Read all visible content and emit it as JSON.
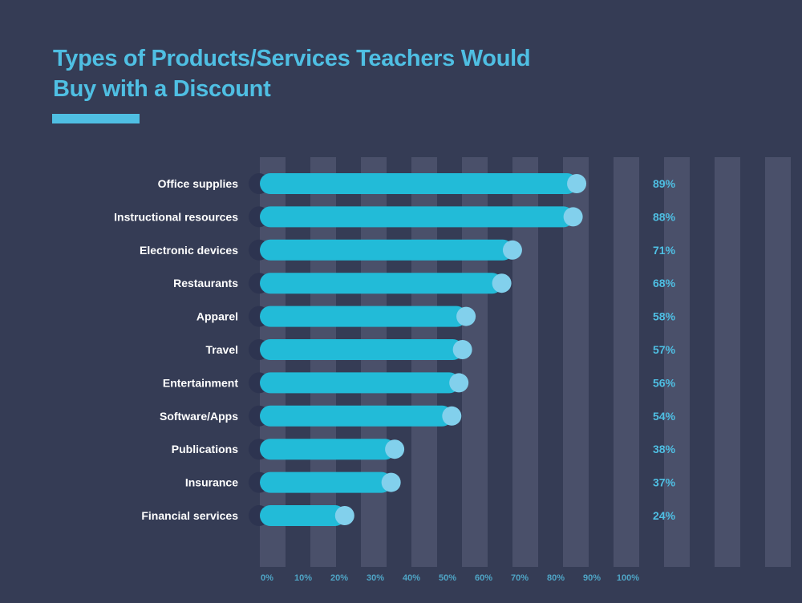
{
  "page": {
    "title_lines": [
      "Types of Products/Services Teachers Would",
      "Buy with a Discount"
    ]
  },
  "colors": {
    "background": "#353c55",
    "title": "#4fbfe3",
    "bar": "#22bbd8",
    "bar_cap": "#82d0ec",
    "track": "#2d3450",
    "gridline": "#4a506a",
    "label": "#ffffff",
    "value": "#4fbfe3",
    "tick": "#4fa5c6"
  },
  "chart_data": {
    "type": "bar",
    "orientation": "horizontal",
    "title": "Types of Products/Services Teachers Would Buy with a Discount",
    "categories": [
      "Office supplies",
      "Instructional resources",
      "Electronic devices",
      "Restaurants",
      "Apparel",
      "Travel",
      "Entertainment",
      "Software/Apps",
      "Publications",
      "Insurance",
      "Financial services"
    ],
    "values": [
      89,
      88,
      71,
      68,
      58,
      57,
      56,
      54,
      38,
      37,
      24
    ],
    "value_labels": [
      "89%",
      "88%",
      "71%",
      "68%",
      "58%",
      "57%",
      "56%",
      "54%",
      "38%",
      "37%",
      "24%"
    ],
    "x_ticks": [
      "0%",
      "10%",
      "20%",
      "30%",
      "40%",
      "50%",
      "60%",
      "70%",
      "80%",
      "90%",
      "100%"
    ],
    "xlim": [
      0,
      100
    ],
    "xlabel": "",
    "ylabel": "",
    "grid": true,
    "legend": "none"
  }
}
